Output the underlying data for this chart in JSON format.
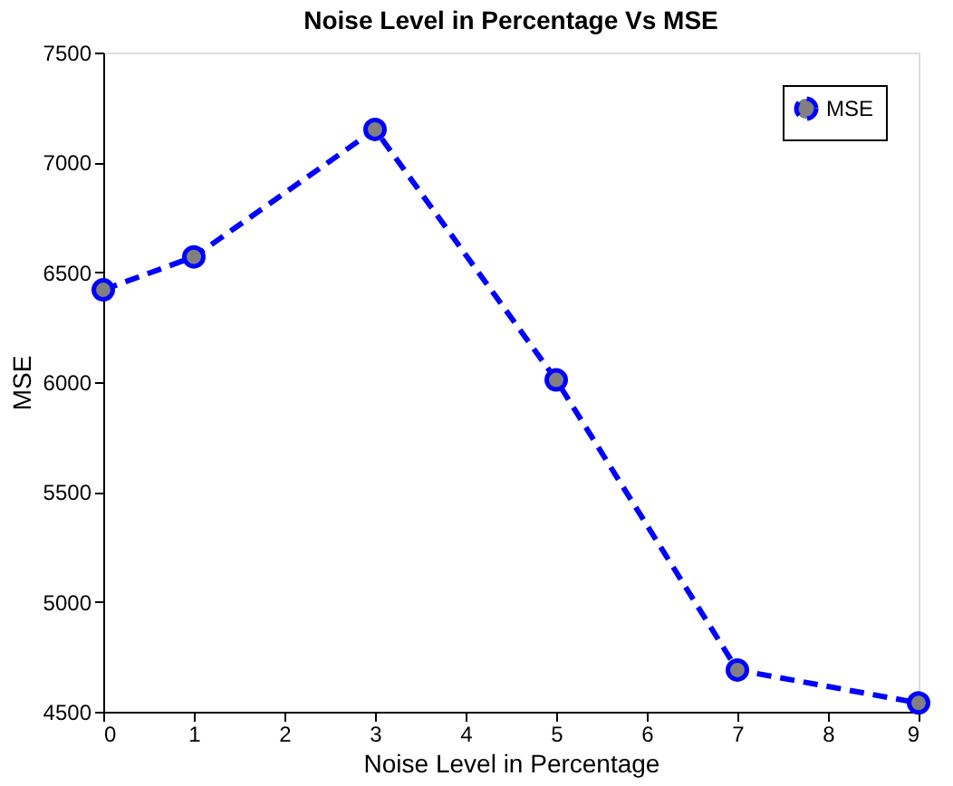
{
  "chart_data": {
    "type": "line",
    "title": "Noise Level in Percentage Vs MSE",
    "xlabel": "Noise Level in Percentage",
    "ylabel": "MSE",
    "x": [
      0,
      1,
      3,
      5,
      7,
      9
    ],
    "series": [
      {
        "name": "MSE",
        "color": "#0000ff",
        "values": [
          6420,
          6570,
          7150,
          6010,
          4690,
          4540
        ]
      }
    ],
    "xlim": [
      0,
      9
    ],
    "xticks": [
      0,
      1,
      2,
      3,
      4,
      5,
      6,
      7,
      8,
      9
    ],
    "ylim": [
      4500,
      7500
    ],
    "yticks": [
      4500,
      5000,
      5500,
      6000,
      6500,
      7000,
      7500
    ],
    "grid": false,
    "legend": "top right",
    "marker": "circle",
    "line_style": "dashed"
  }
}
